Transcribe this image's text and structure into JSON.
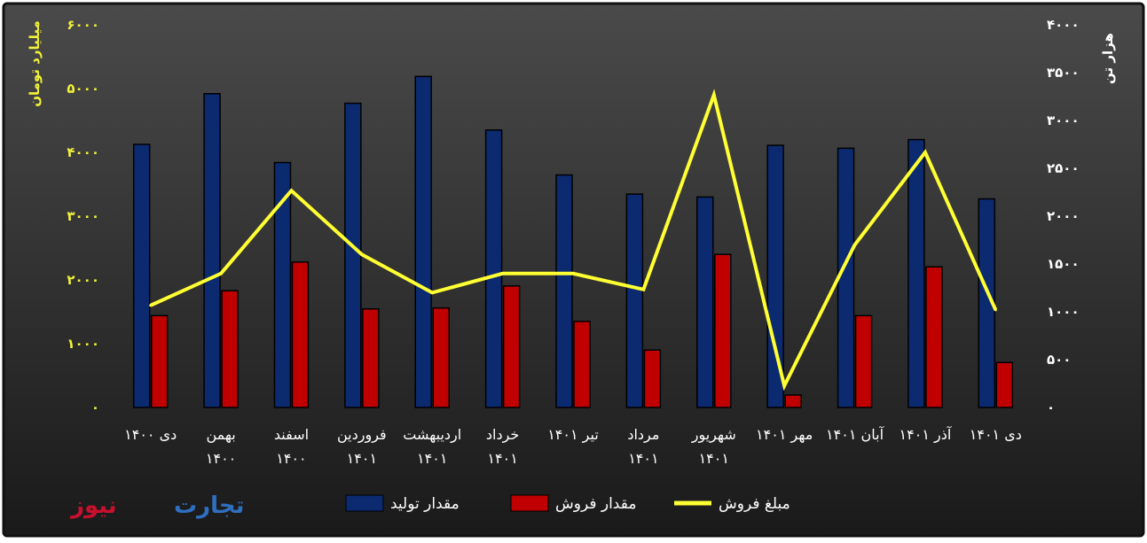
{
  "brand": {
    "logo_text_1": "تجارت",
    "logo_text_2": "نیوز",
    "logo_color_1": "#2f6fc0",
    "logo_color_2": "#c8102e"
  },
  "colors": {
    "background_top": "#4a4a4a",
    "background_bottom": "#1a1a1a",
    "production": "#0b2a6f",
    "sales_qty": "#c00000",
    "sales_amount": "#ffff33",
    "left_axis_text": "#f2f23a",
    "right_axis_text": "#ffffff",
    "category_text": "#ffffff"
  },
  "chart_data": {
    "type": "bar",
    "categories": [
      "دی ۱۴۰۰",
      "بهمن ۱۴۰۰",
      "اسفند ۱۴۰۰",
      "فروردین ۱۴۰۱",
      "اردیبهشت ۱۴۰۱",
      "خرداد ۱۴۰۱",
      "تیر ۱۴۰۱",
      "مرداد ۱۴۰۱",
      "شهریور ۱۴۰۱",
      "مهر ۱۴۰۱",
      "آبان ۱۴۰۱",
      "آذر ۱۴۰۱",
      "دی ۱۴۰۱"
    ],
    "category_lines": [
      [
        "دی ۱۴۰۰"
      ],
      [
        "بهمن",
        "۱۴۰۰"
      ],
      [
        "اسفند",
        "۱۴۰۰"
      ],
      [
        "فروردین",
        "۱۴۰۱"
      ],
      [
        "اردیبهشت",
        "۱۴۰۱"
      ],
      [
        "خرداد",
        "۱۴۰۱"
      ],
      [
        "تیر ۱۴۰۱"
      ],
      [
        "مرداد",
        "۱۴۰۱"
      ],
      [
        "شهریور",
        "۱۴۰۱"
      ],
      [
        "مهر ۱۴۰۱"
      ],
      [
        "آبان ۱۴۰۱"
      ],
      [
        "آذر ۱۴۰۱"
      ],
      [
        "دی ۱۴۰۱"
      ]
    ],
    "series": [
      {
        "name": "مقدار تولید",
        "type": "bar",
        "axis": "right",
        "values": [
          2750,
          3280,
          2560,
          3180,
          3460,
          2900,
          2430,
          2230,
          2200,
          2740,
          2710,
          2800,
          2180
        ]
      },
      {
        "name": "مقدار فروش",
        "type": "bar",
        "axis": "right",
        "values": [
          960,
          1220,
          1520,
          1030,
          1040,
          1270,
          900,
          600,
          1600,
          130,
          960,
          1470,
          470
        ]
      },
      {
        "name": "مبلغ فروش",
        "type": "line",
        "axis": "left",
        "values": [
          1600,
          2100,
          3400,
          2400,
          1800,
          2100,
          2100,
          1850,
          4900,
          340,
          2550,
          4000,
          1530
        ]
      }
    ],
    "left_axis": {
      "label": "میلیارد تومان",
      "ylim": [
        0,
        6000
      ],
      "ticks": [
        "۰",
        "۱۰۰۰",
        "۲۰۰۰",
        "۳۰۰۰",
        "۴۰۰۰",
        "۵۰۰۰",
        "۶۰۰۰"
      ]
    },
    "right_axis": {
      "label": "هزار تن",
      "ylim": [
        0,
        4000
      ],
      "ticks": [
        "۰",
        "۵۰۰",
        "۱۰۰۰",
        "۱۵۰۰",
        "۲۰۰۰",
        "۲۵۰۰",
        "۳۰۰۰",
        "۳۵۰۰",
        "۴۰۰۰"
      ]
    },
    "grid": false,
    "legend": "bottom-center"
  }
}
